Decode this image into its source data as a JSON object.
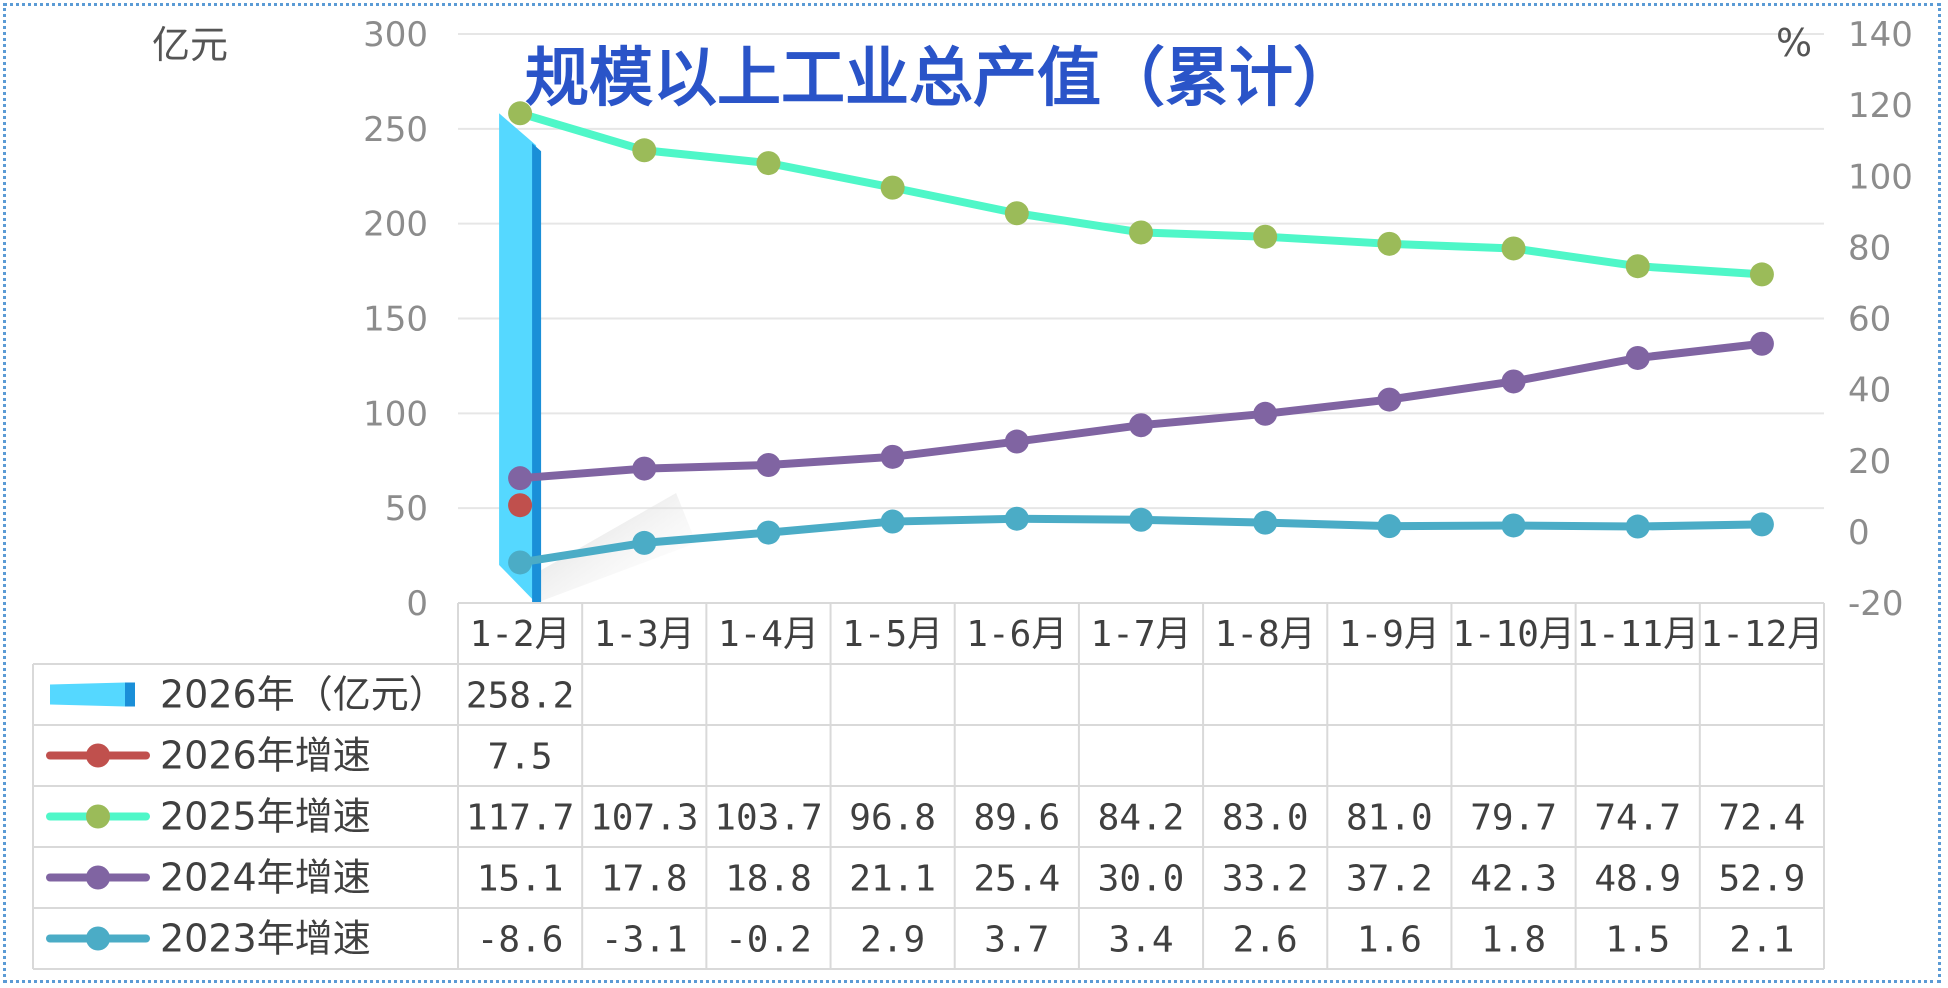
{
  "chart_data": {
    "type": "bar+line",
    "title": "规模以上工业总产值（累计）",
    "y_left_unit": "亿元",
    "y_right_unit": "%",
    "y_left_range": [
      0,
      300
    ],
    "y_left_ticks": [
      "300",
      "250",
      "200",
      "150",
      "100",
      "50",
      "0"
    ],
    "y_right_range": [
      -20,
      140
    ],
    "y_right_ticks": [
      "140",
      "120",
      "100",
      "80",
      "60",
      "40",
      "20",
      "0",
      "-20"
    ],
    "categories": [
      "1-2月",
      "1-3月",
      "1-4月",
      "1-5月",
      "1-6月",
      "1-7月",
      "1-8月",
      "1-9月",
      "1-10月",
      "1-11月",
      "1-12月"
    ],
    "series": [
      {
        "name": "2026年（亿元）",
        "kind": "bar",
        "axis": "left",
        "color": "#55d8ff",
        "values": [
          258.2,
          null,
          null,
          null,
          null,
          null,
          null,
          null,
          null,
          null,
          null
        ],
        "labels": [
          "258.2",
          "",
          "",
          "",
          "",
          "",
          "",
          "",
          "",
          "",
          ""
        ]
      },
      {
        "name": "2026年增速",
        "kind": "line",
        "axis": "right",
        "color": "#c0504d",
        "marker": "#c0504d",
        "values": [
          7.5,
          null,
          null,
          null,
          null,
          null,
          null,
          null,
          null,
          null,
          null
        ],
        "labels": [
          "7.5",
          "",
          "",
          "",
          "",
          "",
          "",
          "",
          "",
          "",
          ""
        ]
      },
      {
        "name": "2025年增速",
        "kind": "line",
        "axis": "right",
        "color": "#4ff7c8",
        "marker": "#9bbb59",
        "values": [
          117.7,
          107.3,
          103.7,
          96.8,
          89.6,
          84.2,
          83.0,
          81.0,
          79.7,
          74.7,
          72.4
        ],
        "labels": [
          "117.7",
          "107.3",
          "103.7",
          "96.8",
          "89.6",
          "84.2",
          "83.0",
          "81.0",
          "79.7",
          "74.7",
          "72.4"
        ]
      },
      {
        "name": "2024年增速",
        "kind": "line",
        "axis": "right",
        "color": "#8064a2",
        "marker": "#8064a2",
        "values": [
          15.1,
          17.8,
          18.8,
          21.1,
          25.4,
          30.0,
          33.2,
          37.2,
          42.3,
          48.9,
          52.9
        ],
        "labels": [
          "15.1",
          "17.8",
          "18.8",
          "21.1",
          "25.4",
          "30.0",
          "33.2",
          "37.2",
          "42.3",
          "48.9",
          "52.9"
        ]
      },
      {
        "name": "2023年增速",
        "kind": "line",
        "axis": "right",
        "color": "#4bacc6",
        "marker": "#4bacc6",
        "values": [
          -8.6,
          -3.1,
          -0.2,
          2.9,
          3.7,
          3.4,
          2.6,
          1.6,
          1.8,
          1.5,
          2.1
        ],
        "labels": [
          "-8.6",
          "-3.1",
          "-0.2",
          "2.9",
          "3.7",
          "3.4",
          "2.6",
          "1.6",
          "1.8",
          "1.5",
          "2.1"
        ]
      }
    ],
    "legend_placement": "data-table",
    "grid": true
  }
}
